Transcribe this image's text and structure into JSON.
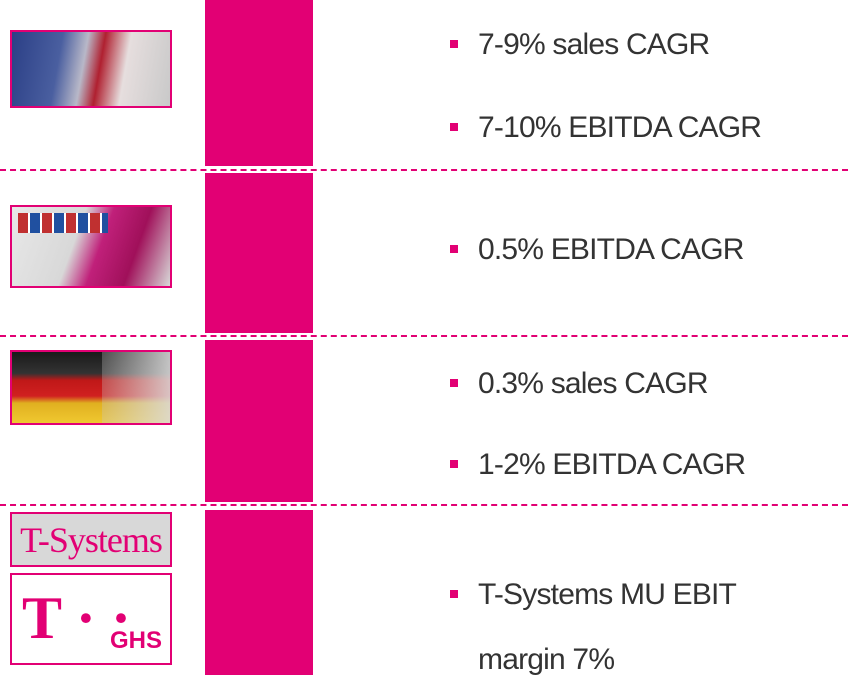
{
  "rows": [
    {
      "bullets": [
        "7-9% sales CAGR",
        "7-10% EBITDA CAGR"
      ]
    },
    {
      "bullets": [
        "0.5% EBITDA CAGR"
      ]
    },
    {
      "bullets": [
        "0.3% sales CAGR",
        "1-2% EBITDA CAGR"
      ]
    },
    {
      "logos": [
        "T-Systems",
        "GHS"
      ],
      "bullets": [
        "T-Systems MU EBIT margin 7%"
      ]
    }
  ]
}
